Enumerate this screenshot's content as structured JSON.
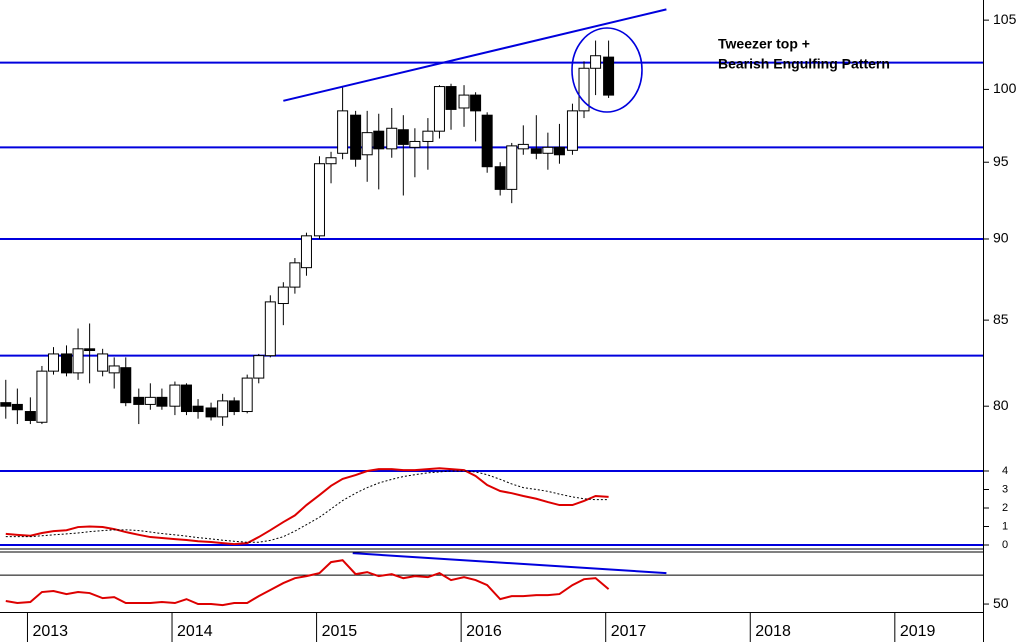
{
  "chart_data": [
    {
      "type": "candlestick",
      "log_scale": true,
      "xlim": [
        2012.81,
        2019.61
      ],
      "xticks": [
        2013,
        2014,
        2015,
        2016,
        2017,
        2018,
        2019
      ],
      "ylim": [
        76.7,
        106.5
      ],
      "yticks": [
        80,
        85,
        90,
        95,
        100,
        105
      ],
      "up_color": "#ffffff",
      "down_color": "#000000",
      "line_color": "#0000dd",
      "x": [
        2012.85,
        2012.93,
        2013.02,
        2013.1,
        2013.18,
        2013.27,
        2013.35,
        2013.43,
        2013.52,
        2013.6,
        2013.68,
        2013.77,
        2013.85,
        2013.93,
        2014.02,
        2014.1,
        2014.18,
        2014.27,
        2014.35,
        2014.43,
        2014.52,
        2014.6,
        2014.68,
        2014.77,
        2014.85,
        2014.93,
        2015.02,
        2015.1,
        2015.18,
        2015.27,
        2015.35,
        2015.43,
        2015.52,
        2015.6,
        2015.68,
        2015.77,
        2015.85,
        2015.93,
        2016.02,
        2016.1,
        2016.18,
        2016.27,
        2016.35,
        2016.43,
        2016.52,
        2016.6,
        2016.68,
        2016.77,
        2016.85,
        2016.93,
        2017.02
      ],
      "open": [
        80.2,
        80.1,
        79.7,
        79.1,
        82.0,
        83.0,
        81.9,
        83.3,
        82.0,
        81.9,
        82.2,
        80.5,
        80.1,
        80.5,
        80.0,
        81.2,
        80.0,
        79.9,
        79.4,
        80.3,
        79.7,
        81.6,
        82.9,
        86.0,
        87.0,
        88.2,
        90.2,
        94.9,
        95.6,
        98.2,
        95.5,
        97.1,
        95.9,
        97.2,
        96.0,
        96.4,
        97.1,
        100.2,
        98.7,
        99.6,
        98.2,
        94.7,
        93.2,
        95.9,
        95.9,
        95.6,
        96.0,
        95.8,
        98.5,
        101.5,
        102.3
      ],
      "high": [
        81.5,
        81.0,
        80.5,
        82.3,
        83.4,
        83.5,
        84.5,
        84.8,
        83.3,
        82.8,
        82.8,
        81.0,
        81.3,
        81.0,
        81.4,
        81.3,
        80.4,
        80.2,
        80.7,
        80.5,
        81.8,
        83.0,
        86.5,
        87.3,
        88.8,
        90.4,
        95.4,
        95.7,
        100.2,
        98.5,
        98.5,
        98.3,
        98.7,
        98.2,
        97.3,
        98.0,
        100.3,
        100.4,
        100.3,
        99.8,
        98.4,
        95.0,
        96.3,
        97.5,
        98.2,
        97.0,
        97.6,
        99.0,
        102.0,
        103.5,
        103.5
      ],
      "low": [
        79.3,
        79.0,
        79.0,
        79.0,
        81.8,
        81.7,
        81.5,
        81.3,
        81.7,
        81.0,
        80.0,
        79.0,
        79.8,
        79.8,
        79.5,
        79.5,
        79.3,
        79.2,
        78.9,
        79.5,
        79.6,
        81.3,
        82.8,
        84.7,
        86.6,
        87.7,
        90.0,
        93.6,
        95.2,
        94.7,
        93.7,
        93.2,
        95.3,
        92.8,
        94.0,
        94.5,
        96.6,
        97.2,
        97.4,
        96.4,
        94.3,
        92.8,
        92.3,
        95.5,
        95.2,
        94.5,
        94.9,
        95.5,
        98.0,
        99.6,
        99.4
      ],
      "close": [
        80.0,
        79.8,
        79.2,
        82.0,
        83.0,
        81.9,
        83.3,
        83.2,
        83.0,
        82.3,
        80.2,
        80.1,
        80.5,
        80.0,
        81.2,
        79.7,
        79.7,
        79.4,
        80.3,
        79.7,
        81.6,
        82.9,
        86.1,
        87.0,
        88.5,
        90.2,
        94.9,
        95.3,
        98.5,
        95.2,
        97.0,
        95.9,
        97.3,
        96.2,
        96.4,
        97.1,
        100.2,
        98.6,
        99.6,
        98.5,
        94.7,
        93.2,
        96.1,
        96.2,
        95.6,
        96.0,
        95.5,
        98.5,
        101.5,
        102.4,
        99.6
      ],
      "hlines": [
        101.9,
        96.0,
        90.0,
        82.9
      ],
      "trendlines": [
        {
          "x": [
            2014.77,
            2017.42
          ],
          "y": [
            99.2,
            105.8
          ]
        }
      ],
      "annotations": [
        "Tweezer top +",
        "Bearish Engulfing Pattern"
      ],
      "annotation_color": "#e00000"
    },
    {
      "type": "line",
      "ylim": [
        -0.27,
        4.27
      ],
      "yticks": [
        0,
        1,
        2,
        3,
        4
      ],
      "hlines": [
        0,
        4
      ],
      "line_color": "#0000dd",
      "series": [
        {
          "color": "#dd0000",
          "values": [
            0.6,
            0.55,
            0.5,
            0.65,
            0.75,
            0.8,
            0.97,
            1.0,
            0.97,
            0.86,
            0.7,
            0.55,
            0.43,
            0.38,
            0.32,
            0.27,
            0.2,
            0.16,
            0.1,
            0.05,
            0.1,
            0.43,
            0.8,
            1.24,
            1.6,
            2.16,
            2.7,
            3.2,
            3.57,
            3.78,
            4.0,
            4.1,
            4.1,
            4.05,
            4.05,
            4.1,
            4.15,
            4.1,
            4.05,
            3.73,
            3.24,
            2.92,
            2.8,
            2.65,
            2.5,
            2.32,
            2.16,
            2.16,
            2.38,
            2.65,
            2.6
          ]
        },
        {
          "color": "#000000",
          "dash": true,
          "values": [
            0.45,
            0.45,
            0.45,
            0.5,
            0.55,
            0.6,
            0.65,
            0.72,
            0.78,
            0.82,
            0.82,
            0.78,
            0.7,
            0.62,
            0.55,
            0.48,
            0.4,
            0.33,
            0.26,
            0.2,
            0.15,
            0.15,
            0.25,
            0.45,
            0.75,
            1.1,
            1.5,
            1.95,
            2.4,
            2.8,
            3.1,
            3.35,
            3.55,
            3.7,
            3.8,
            3.9,
            3.95,
            4.0,
            4.0,
            3.95,
            3.8,
            3.55,
            3.3,
            3.1,
            3.0,
            2.9,
            2.75,
            2.6,
            2.5,
            2.45,
            2.45
          ]
        }
      ]
    },
    {
      "type": "line",
      "ylim": [
        44.5,
        86
      ],
      "yticks": [
        50
      ],
      "hlines": [
        70
      ],
      "line_color": "#000000",
      "trendlines": [
        {
          "x": [
            2015.25,
            2017.42
          ],
          "y": [
            85.2,
            71.4
          ]
        }
      ],
      "trend_color": "#0000dd",
      "series": [
        {
          "color": "#dd0000",
          "values": [
            52.1,
            50.7,
            51.4,
            58.3,
            59.0,
            56.9,
            58.3,
            57.6,
            54.1,
            54.8,
            50.7,
            50.7,
            50.7,
            51.4,
            50.7,
            53.4,
            50.0,
            50.0,
            49.3,
            50.7,
            50.7,
            55.5,
            59.7,
            64.5,
            67.9,
            69.3,
            71.4,
            79.0,
            80.3,
            70.7,
            72.1,
            69.3,
            70.7,
            67.9,
            69.3,
            68.6,
            71.4,
            66.6,
            68.6,
            66.6,
            63.1,
            53.4,
            55.5,
            55.5,
            56.2,
            56.2,
            56.9,
            63.1,
            67.2,
            67.9,
            60.3
          ]
        }
      ]
    }
  ]
}
